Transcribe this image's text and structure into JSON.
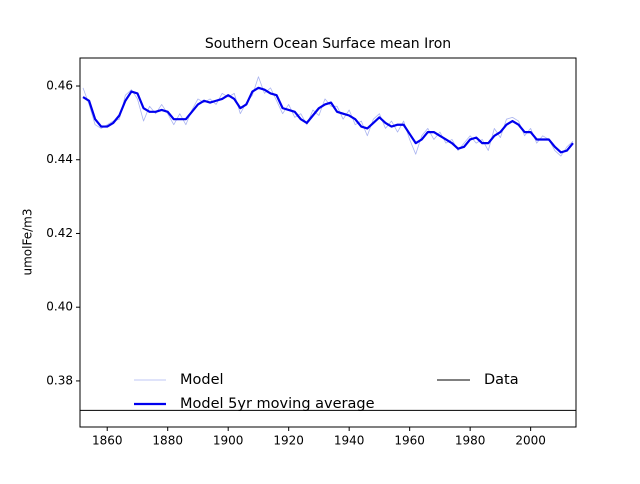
{
  "chart_data": {
    "type": "line",
    "title": "Southern Ocean Surface mean Iron",
    "ylabel": "umolFe/m3",
    "x": [
      1852,
      1854,
      1856,
      1858,
      1860,
      1862,
      1864,
      1866,
      1868,
      1870,
      1872,
      1874,
      1876,
      1878,
      1880,
      1882,
      1884,
      1886,
      1888,
      1890,
      1892,
      1894,
      1896,
      1898,
      1900,
      1902,
      1904,
      1906,
      1908,
      1910,
      1912,
      1914,
      1916,
      1918,
      1920,
      1922,
      1924,
      1926,
      1928,
      1930,
      1932,
      1934,
      1936,
      1938,
      1940,
      1942,
      1944,
      1946,
      1948,
      1950,
      1952,
      1954,
      1956,
      1958,
      1960,
      1962,
      1964,
      1966,
      1968,
      1970,
      1972,
      1974,
      1976,
      1978,
      1980,
      1982,
      1984,
      1986,
      1988,
      1990,
      1992,
      1994,
      1996,
      1998,
      2000,
      2002,
      2004,
      2006,
      2008,
      2010,
      2012,
      2014
    ],
    "series": [
      {
        "name": "Model",
        "color": "#aab4f0",
        "width": 0.8,
        "values": [
          0.4595,
          0.455,
          0.4495,
          0.4485,
          0.4495,
          0.4505,
          0.451,
          0.4575,
          0.459,
          0.4565,
          0.4505,
          0.4545,
          0.4525,
          0.455,
          0.4525,
          0.4495,
          0.4525,
          0.4495,
          0.4535,
          0.4565,
          0.4555,
          0.4565,
          0.455,
          0.458,
          0.457,
          0.458,
          0.4525,
          0.4555,
          0.4575,
          0.4625,
          0.458,
          0.4595,
          0.456,
          0.4525,
          0.455,
          0.4515,
          0.4525,
          0.4495,
          0.4535,
          0.452,
          0.4565,
          0.4545,
          0.4545,
          0.451,
          0.4535,
          0.4495,
          0.4505,
          0.4465,
          0.451,
          0.4525,
          0.4485,
          0.4505,
          0.4475,
          0.4505,
          0.4455,
          0.4415,
          0.4465,
          0.4485,
          0.4455,
          0.4475,
          0.4445,
          0.4455,
          0.4425,
          0.4445,
          0.4465,
          0.4445,
          0.4455,
          0.4425,
          0.4485,
          0.446,
          0.451,
          0.4515,
          0.4505,
          0.4465,
          0.4485,
          0.4445,
          0.4465,
          0.4455,
          0.4425,
          0.441,
          0.4435,
          0.445
        ]
      },
      {
        "name": "Model 5yr moving average",
        "color": "#0000ee",
        "width": 2.2,
        "values": [
          0.457,
          0.456,
          0.451,
          0.449,
          0.449,
          0.45,
          0.452,
          0.456,
          0.4585,
          0.458,
          0.454,
          0.453,
          0.453,
          0.4535,
          0.453,
          0.451,
          0.451,
          0.451,
          0.453,
          0.455,
          0.456,
          0.4555,
          0.456,
          0.4565,
          0.4575,
          0.4565,
          0.454,
          0.455,
          0.4585,
          0.4595,
          0.459,
          0.458,
          0.4575,
          0.454,
          0.4535,
          0.453,
          0.451,
          0.45,
          0.452,
          0.454,
          0.455,
          0.4555,
          0.453,
          0.4525,
          0.452,
          0.451,
          0.449,
          0.4485,
          0.45,
          0.4515,
          0.45,
          0.449,
          0.4495,
          0.4495,
          0.447,
          0.4445,
          0.4455,
          0.4475,
          0.4475,
          0.4465,
          0.4455,
          0.4445,
          0.443,
          0.4435,
          0.4455,
          0.446,
          0.4445,
          0.4445,
          0.4465,
          0.4475,
          0.4495,
          0.4505,
          0.4495,
          0.4475,
          0.4475,
          0.4455,
          0.4455,
          0.4455,
          0.4435,
          0.442,
          0.4425,
          0.4445
        ]
      }
    ],
    "reference_lines": [
      {
        "name": "Data",
        "value": 0.372,
        "color": "#000000"
      }
    ],
    "xlim": [
      1851,
      2015
    ],
    "ylim": [
      0.3675,
      0.4676
    ],
    "xticks": [
      1860,
      1880,
      1900,
      1920,
      1940,
      1960,
      1980,
      2000
    ],
    "yticks": [
      0.38,
      {
        "value": 0.4,
        "label": "0.40"
      },
      0.42,
      0.44,
      0.46
    ],
    "grid": false
  }
}
